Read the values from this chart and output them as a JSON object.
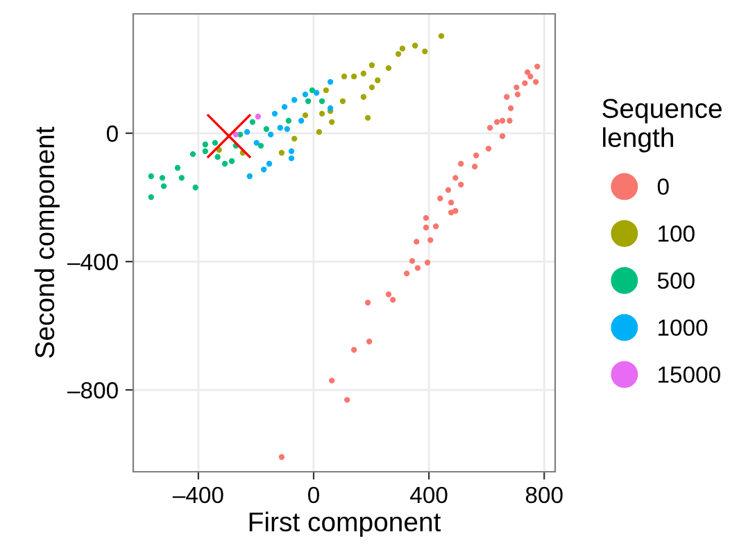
{
  "chart_data": {
    "type": "scatter",
    "xlabel": "First component",
    "ylabel": "Second component",
    "legend_title": "Sequence\nlength",
    "legend": "right",
    "grid": true,
    "marker": "circle",
    "xlim": [
      -626,
      838
    ],
    "ylim": [
      -1055,
      372
    ],
    "xticks": [
      {
        "value": -400,
        "label": "–400"
      },
      0,
      400,
      800
    ],
    "yticks": [
      {
        "value": -800,
        "label": "–800"
      },
      {
        "value": -400,
        "label": "–400"
      },
      0
    ],
    "series": [
      {
        "name": "0",
        "color": "#f8766d",
        "x": [
          -111,
          116,
          63,
          193,
          140,
          188,
          260,
          275,
          323,
          342,
          361,
          395,
          357,
          405,
          390,
          424,
          477,
          492,
          390,
          439,
          477,
          467,
          511,
          492,
          559,
          564,
          607,
          612,
          636,
          655,
          655,
          680,
          684,
          670,
          708,
          733,
          752,
          742,
          776,
          771,
          704,
          511
        ],
        "values": [
          -1009,
          -831,
          -771,
          -649,
          -675,
          -528,
          -502,
          -519,
          -437,
          -398,
          -420,
          -403,
          -338,
          -333,
          -294,
          -290,
          -247,
          -242,
          -264,
          -203,
          -216,
          -177,
          -160,
          -139,
          -104,
          -69,
          -48,
          17,
          35,
          39,
          -9,
          39,
          78,
          113,
          121,
          156,
          177,
          190,
          208,
          160,
          143,
          -95
        ]
      },
      {
        "name": "100",
        "color": "#a3a500",
        "x": [
          443,
          386,
          352,
          308,
          294,
          260,
          202,
          173,
          140,
          106,
          188,
          202,
          173,
          101,
          58,
          63,
          19,
          29,
          -67,
          -111,
          -246,
          43,
          -29,
          222,
          -328
        ],
        "values": [
          303,
          255,
          273,
          264,
          247,
          203,
          212,
          186,
          177,
          177,
          48,
          143,
          113,
          100,
          69,
          35,
          4,
          61,
          -17,
          -61,
          -61,
          134,
          56,
          165,
          -52
        ]
      },
      {
        "name": "500",
        "color": "#00bf7d",
        "x": [
          -564,
          -564,
          -525,
          -520,
          -472,
          -458,
          -410,
          -419,
          -376,
          -376,
          -342,
          -333,
          -308,
          -284,
          -255,
          -212,
          -164,
          -87,
          -19,
          29,
          -5,
          -183,
          -270
        ],
        "values": [
          -199,
          -134,
          -139,
          -165,
          -108,
          -139,
          -169,
          -65,
          -56,
          -35,
          -30,
          -74,
          -95,
          -87,
          -4,
          35,
          13,
          39,
          100,
          100,
          134,
          -39,
          -39
        ]
      },
      {
        "name": "1000",
        "color": "#00b0f6",
        "x": [
          -222,
          -173,
          -154,
          -77,
          -77,
          -198,
          -149,
          -116,
          -135,
          -101,
          -67,
          -29,
          10,
          58,
          58,
          -92,
          -231,
          -43
        ],
        "values": [
          -134,
          -113,
          -95,
          -56,
          -78,
          -30,
          -4,
          17,
          61,
          82,
          104,
          121,
          126,
          160,
          78,
          13,
          4,
          39
        ]
      },
      {
        "name": "15000",
        "color": "#e76bf3",
        "x": [
          -193,
          -270
        ],
        "values": [
          52,
          -4
        ]
      },
      {
        "color": "#ff0000",
        "marker": "cross",
        "x": [
          -294
        ],
        "values": [
          -9
        ]
      }
    ]
  }
}
